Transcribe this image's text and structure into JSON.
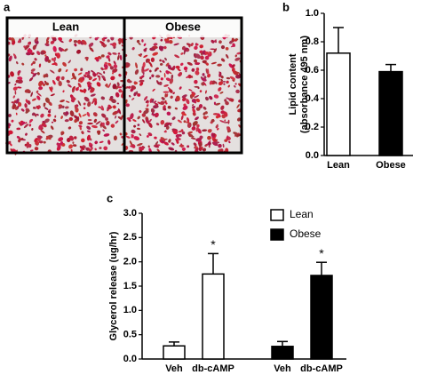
{
  "chart_data": [
    {
      "type": "image",
      "panel": "a",
      "labels": [
        "Lean",
        "Obese"
      ]
    },
    {
      "type": "bar",
      "panel": "b",
      "ylabel": [
        "Lipid content",
        "(absorbance 495 nm)"
      ],
      "categories": [
        "Lean",
        "Obese"
      ],
      "values": [
        0.72,
        0.59
      ],
      "errors": [
        0.18,
        0.05
      ],
      "colors": [
        "#ffffff",
        "#000000"
      ],
      "ylim": [
        0,
        1.0
      ],
      "yticks": [
        {
          "value": 0,
          "label": "0.0"
        },
        {
          "value": 0.2,
          "label": "0.2"
        },
        {
          "value": 0.4,
          "label": "0.4"
        },
        {
          "value": 0.6,
          "label": "0.6"
        },
        {
          "value": 0.8,
          "label": "0.8"
        },
        {
          "value": 1.0,
          "label": "1.0"
        }
      ]
    },
    {
      "type": "grouped_bar",
      "panel": "c",
      "ylabel": "Glycerol release (ug/hr)",
      "categories": [
        "Veh",
        "db-cAMP",
        "Veh",
        "db-cAMP"
      ],
      "series": [
        {
          "name": "Lean",
          "color": "#ffffff",
          "values": [
            0.27,
            1.75,
            null,
            null
          ],
          "errors": [
            0.08,
            0.42,
            null,
            null
          ]
        },
        {
          "name": "Obese",
          "color": "#000000",
          "values": [
            null,
            null,
            0.26,
            1.72
          ],
          "errors": [
            null,
            null,
            0.1,
            0.27
          ]
        }
      ],
      "annotations": [
        {
          "text": "*",
          "series": 0,
          "index": 1
        },
        {
          "text": "*",
          "series": 1,
          "index": 3
        }
      ],
      "ylim": [
        0,
        3.0
      ],
      "yticks": [
        {
          "value": 0,
          "label": "0.0"
        },
        {
          "value": 0.5,
          "label": "0.5"
        },
        {
          "value": 1.0,
          "label": "1.0"
        },
        {
          "value": 1.5,
          "label": "1.5"
        },
        {
          "value": 2.0,
          "label": "2.0"
        },
        {
          "value": 2.5,
          "label": "2.5"
        },
        {
          "value": 3.0,
          "label": "3.0"
        }
      ],
      "legend": "upper right"
    }
  ]
}
